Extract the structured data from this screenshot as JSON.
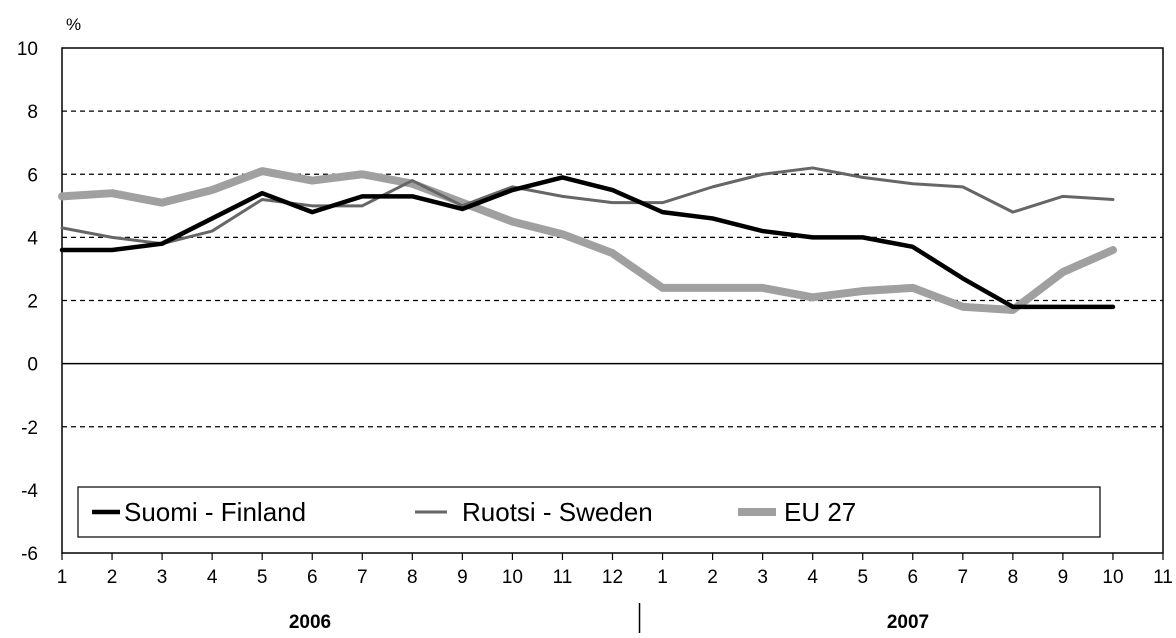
{
  "chart_data": {
    "type": "line",
    "unit_label": "%",
    "ylim": [
      -6,
      10
    ],
    "y_ticks": [
      "10",
      "8",
      "6",
      "4",
      "2",
      "0",
      "-2",
      "-4",
      "-6"
    ],
    "x_tick_labels": [
      "1",
      "2",
      "3",
      "4",
      "5",
      "6",
      "7",
      "8",
      "9",
      "10",
      "11",
      "12",
      "1",
      "2",
      "3",
      "4",
      "5",
      "6",
      "7",
      "8",
      "9",
      "10",
      "11"
    ],
    "year_labels": [
      "2006",
      "2007"
    ],
    "gridlines": "dashed at 2, 4, 6, 8",
    "legend_placement": "bottom-left",
    "x": [
      1,
      2,
      3,
      4,
      5,
      6,
      7,
      8,
      9,
      10,
      11,
      12,
      13,
      14,
      15,
      16,
      17,
      18,
      19,
      20,
      21,
      22
    ],
    "series": [
      {
        "name": "Suomi - Finland",
        "color": "#000000",
        "values": [
          3.6,
          3.6,
          3.8,
          4.6,
          5.4,
          4.8,
          5.3,
          5.3,
          4.9,
          5.5,
          5.9,
          5.5,
          4.8,
          4.6,
          4.2,
          4.0,
          4.0,
          3.7,
          2.7,
          1.8,
          1.8,
          1.8
        ]
      },
      {
        "name": "Ruotsi - Sweden",
        "color": "#666666",
        "values": [
          4.3,
          4.0,
          3.8,
          4.2,
          5.2,
          5.0,
          5.0,
          5.8,
          5.0,
          5.6,
          5.3,
          5.1,
          5.1,
          5.6,
          6.0,
          6.2,
          5.9,
          5.7,
          5.6,
          4.8,
          5.3,
          5.2
        ]
      },
      {
        "name": "EU 27",
        "color": "#a0a0a0",
        "values": [
          5.3,
          5.4,
          5.1,
          5.5,
          6.1,
          5.8,
          6.0,
          5.7,
          5.1,
          4.5,
          4.1,
          3.5,
          2.4,
          2.4,
          2.4,
          2.1,
          2.3,
          2.4,
          1.8,
          1.7,
          2.9,
          3.6
        ]
      }
    ]
  }
}
